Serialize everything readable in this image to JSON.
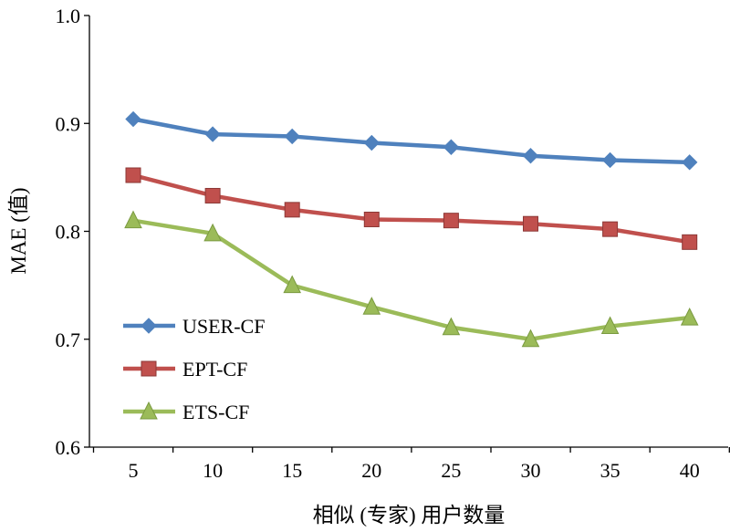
{
  "chart_data": {
    "type": "line",
    "title": "",
    "xlabel": "相似 (专家) 用户数量",
    "ylabel": "MAE (值)",
    "x": [
      5,
      10,
      15,
      20,
      25,
      30,
      35,
      40
    ],
    "xticks": [
      "5",
      "10",
      "15",
      "20",
      "25",
      "30",
      "35",
      "40"
    ],
    "yticks": [
      "0.6",
      "0.7",
      "0.8",
      "0.9",
      "1.0"
    ],
    "ylim": [
      0.6,
      1.0
    ],
    "grid": false,
    "legend_position": "bottom-left",
    "series": [
      {
        "name": "USER-CF",
        "color": "#4F81BD",
        "marker": "diamond",
        "values": [
          0.904,
          0.89,
          0.888,
          0.882,
          0.878,
          0.87,
          0.866,
          0.864
        ]
      },
      {
        "name": "EPT-CF",
        "color": "#C0504D",
        "marker": "square",
        "values": [
          0.852,
          0.833,
          0.82,
          0.811,
          0.81,
          0.807,
          0.802,
          0.79
        ]
      },
      {
        "name": "ETS-CF",
        "color": "#9BBB59",
        "marker": "triangle",
        "values": [
          0.81,
          0.798,
          0.75,
          0.73,
          0.711,
          0.7,
          0.712,
          0.72
        ]
      }
    ]
  }
}
